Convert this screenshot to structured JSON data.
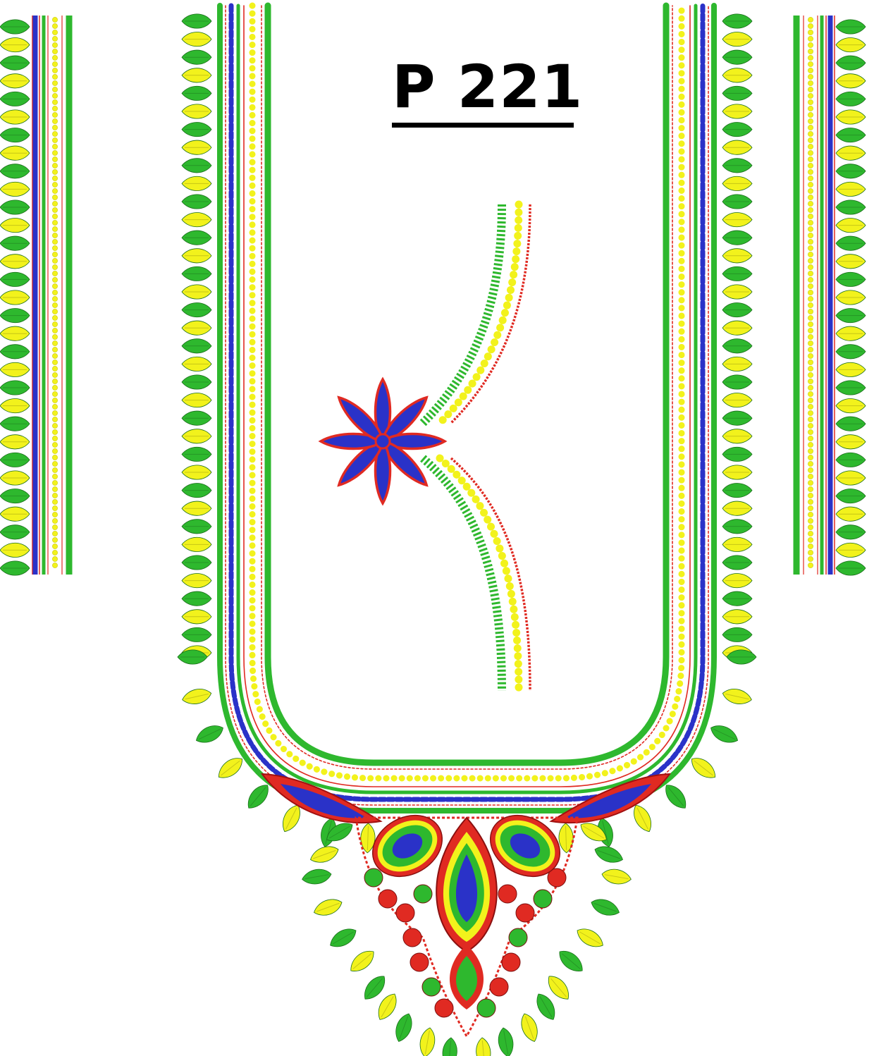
{
  "design_code": "P 221",
  "colors": {
    "green": "#2eb82e",
    "green_dark": "#1f8f1f",
    "yellow": "#f2f21c",
    "yellow_dark": "#c9c900",
    "blue": "#2a32c8",
    "red": "#e02a22",
    "white": "#ffffff",
    "ink": "#000000"
  },
  "motifs": {
    "left_sleeve_border": "vertical-stripe-border-with-leaves",
    "right_sleeve_border": "vertical-stripe-border-with-leaves",
    "neckline": "u-shaped-neckline-border",
    "pendant": "paisley-pendant-motif",
    "flower": "eight-petal-flower",
    "flower_stem": "curved-vine-stripes"
  }
}
